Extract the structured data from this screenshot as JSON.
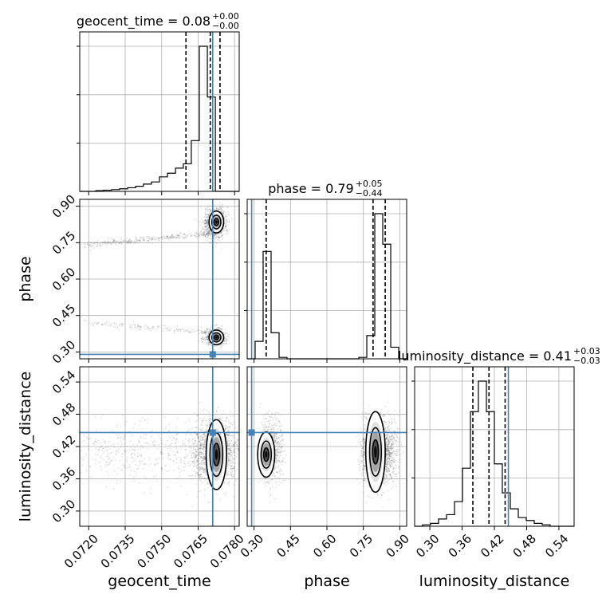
{
  "chart_data": {
    "type": "corner",
    "title": "",
    "parameters": [
      "geocent_time",
      "phase",
      "luminosity_distance"
    ],
    "axis_labels": {
      "x": [
        "geocent_time",
        "phase",
        "luminosity_distance"
      ],
      "y": [
        "phase",
        "luminosity_distance"
      ]
    },
    "titles": [
      {
        "param": "geocent_time",
        "text": "geocent_time = 0.08",
        "sup": "+0.00",
        "sub": "−0.00"
      },
      {
        "param": "phase",
        "text": "phase = 0.79",
        "sup": "+0.05",
        "sub": "−0.44"
      },
      {
        "param": "luminosity_distance",
        "text": "luminosity_distance = 0.41",
        "sup": "+0.03",
        "sub": "−0.03"
      }
    ],
    "ranges": {
      "geocent_time": [
        0.07163,
        0.07819
      ],
      "phase": [
        0.2717,
        0.9283
      ],
      "luminosity_distance": [
        0.2717,
        0.5683
      ]
    },
    "ticks": {
      "geocent_time": [
        "0.0720",
        "0.0735",
        "0.0750",
        "0.0765",
        "0.0780"
      ],
      "phase": [
        "0.30",
        "0.45",
        "0.60",
        "0.75",
        "0.90"
      ],
      "luminosity_distance": [
        "0.30",
        "0.36",
        "0.42",
        "0.48",
        "0.54"
      ]
    },
    "truths": {
      "geocent_time": 0.0771,
      "phase": 0.29,
      "luminosity_distance": 0.446
    },
    "truth_color": "#4682b4",
    "quantiles": {
      "geocent_time": [
        0.076,
        0.077,
        0.0774
      ],
      "phase": [
        0.35,
        0.79,
        0.84
      ],
      "luminosity_distance": [
        0.38,
        0.41,
        0.44
      ]
    },
    "histograms": {
      "geocent_time": {
        "edges": [
          0.07163,
          0.07196,
          0.07229,
          0.07261,
          0.07294,
          0.07327,
          0.0736,
          0.07393,
          0.07425,
          0.07458,
          0.07491,
          0.07524,
          0.07557,
          0.07589,
          0.07622,
          0.07655,
          0.07688,
          0.07721,
          0.07753,
          0.07786,
          0.07819
        ],
        "counts": [
          0,
          0,
          0.5,
          0.8,
          1.2,
          1.8,
          2.5,
          3.5,
          5,
          6.5,
          10,
          12.5,
          16,
          19,
          35,
          100,
          65,
          0,
          0,
          0
        ]
      },
      "phase": {
        "edges": [
          0.2717,
          0.3045,
          0.3373,
          0.3702,
          0.403,
          0.4358,
          0.4687,
          0.5015,
          0.5343,
          0.5672,
          0.6,
          0.6328,
          0.6657,
          0.6985,
          0.7313,
          0.7642,
          0.797,
          0.8298,
          0.8627,
          0.8955,
          0.9283
        ],
        "counts": [
          0,
          12,
          74,
          18,
          1,
          0,
          0,
          0,
          0,
          0,
          0,
          0,
          0,
          0,
          1,
          16,
          100,
          79,
          8,
          0
        ]
      },
      "luminosity_distance": {
        "edges": [
          0.2717,
          0.2865,
          0.3014,
          0.3162,
          0.331,
          0.3459,
          0.3607,
          0.3755,
          0.3903,
          0.4052,
          0.42,
          0.4348,
          0.4497,
          0.4645,
          0.4793,
          0.4942,
          0.509,
          0.5238,
          0.5387,
          0.5535,
          0.5683
        ],
        "counts": [
          0,
          1,
          2,
          5,
          8,
          17,
          40,
          79,
          100,
          79,
          43,
          23,
          12,
          6,
          4,
          2,
          1,
          0,
          0,
          0
        ]
      }
    },
    "modes": {
      "phase": [
        {
          "phase": 0.83,
          "weight": 0.67
        },
        {
          "phase": 0.36,
          "weight": 0.33
        }
      ],
      "geocent_time": {
        "center": 0.0772,
        "sd": 0.00022,
        "tail_to": 0.0718
      },
      "luminosity_distance": {
        "center": 0.41,
        "sd": 0.03
      }
    }
  }
}
